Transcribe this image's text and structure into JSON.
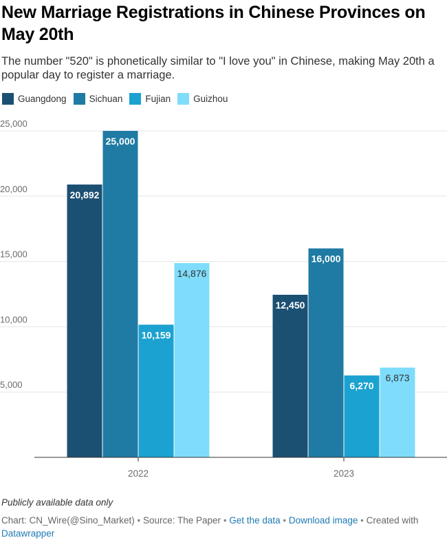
{
  "title": "New Marriage Registrations in Chinese Provinces on May 20th",
  "subtitle": "The number \"520\" is phonetically similar to \"I love you\" in Chinese, making May 20th a popular day to register a marriage.",
  "notes": "Publicly available data only",
  "footer": {
    "chart_by": "Chart: CN_Wire(@Sino_Market)",
    "separator": " • ",
    "source": "Source: The Paper",
    "get_data": "Get the data",
    "download": "Download image",
    "created_with": "Created with",
    "tool": "Datawrapper"
  },
  "chart_data": {
    "type": "bar",
    "title": "New Marriage Registrations in Chinese Provinces on May 20th",
    "xlabel": "",
    "ylabel": "",
    "categories": [
      "2022",
      "2023"
    ],
    "ylim": [
      0,
      25000
    ],
    "yticks": [
      5000,
      10000,
      15000,
      20000,
      25000
    ],
    "ytick_labels": [
      "5,000",
      "10,000",
      "15,000",
      "20,000",
      "25,000"
    ],
    "grid": true,
    "legend_position": "top-left",
    "series": [
      {
        "name": "Guangdong",
        "color": "#1c5073",
        "label_color": "#ffffff",
        "values": [
          20892,
          12450
        ],
        "labels": [
          "20,892",
          "12,450"
        ]
      },
      {
        "name": "Sichuan",
        "color": "#1f7ba3",
        "label_color": "#ffffff",
        "values": [
          25000,
          16000
        ],
        "labels": [
          "25,000",
          "16,000"
        ]
      },
      {
        "name": "Fujian",
        "color": "#1ba2d0",
        "label_color": "#ffffff",
        "values": [
          10159,
          6270
        ],
        "labels": [
          "10,159",
          "6,270"
        ]
      },
      {
        "name": "Guizhou",
        "color": "#7fdcfb",
        "label_color": "#333333",
        "values": [
          14876,
          6873
        ],
        "labels": [
          "14,876",
          "6,873"
        ]
      }
    ]
  }
}
